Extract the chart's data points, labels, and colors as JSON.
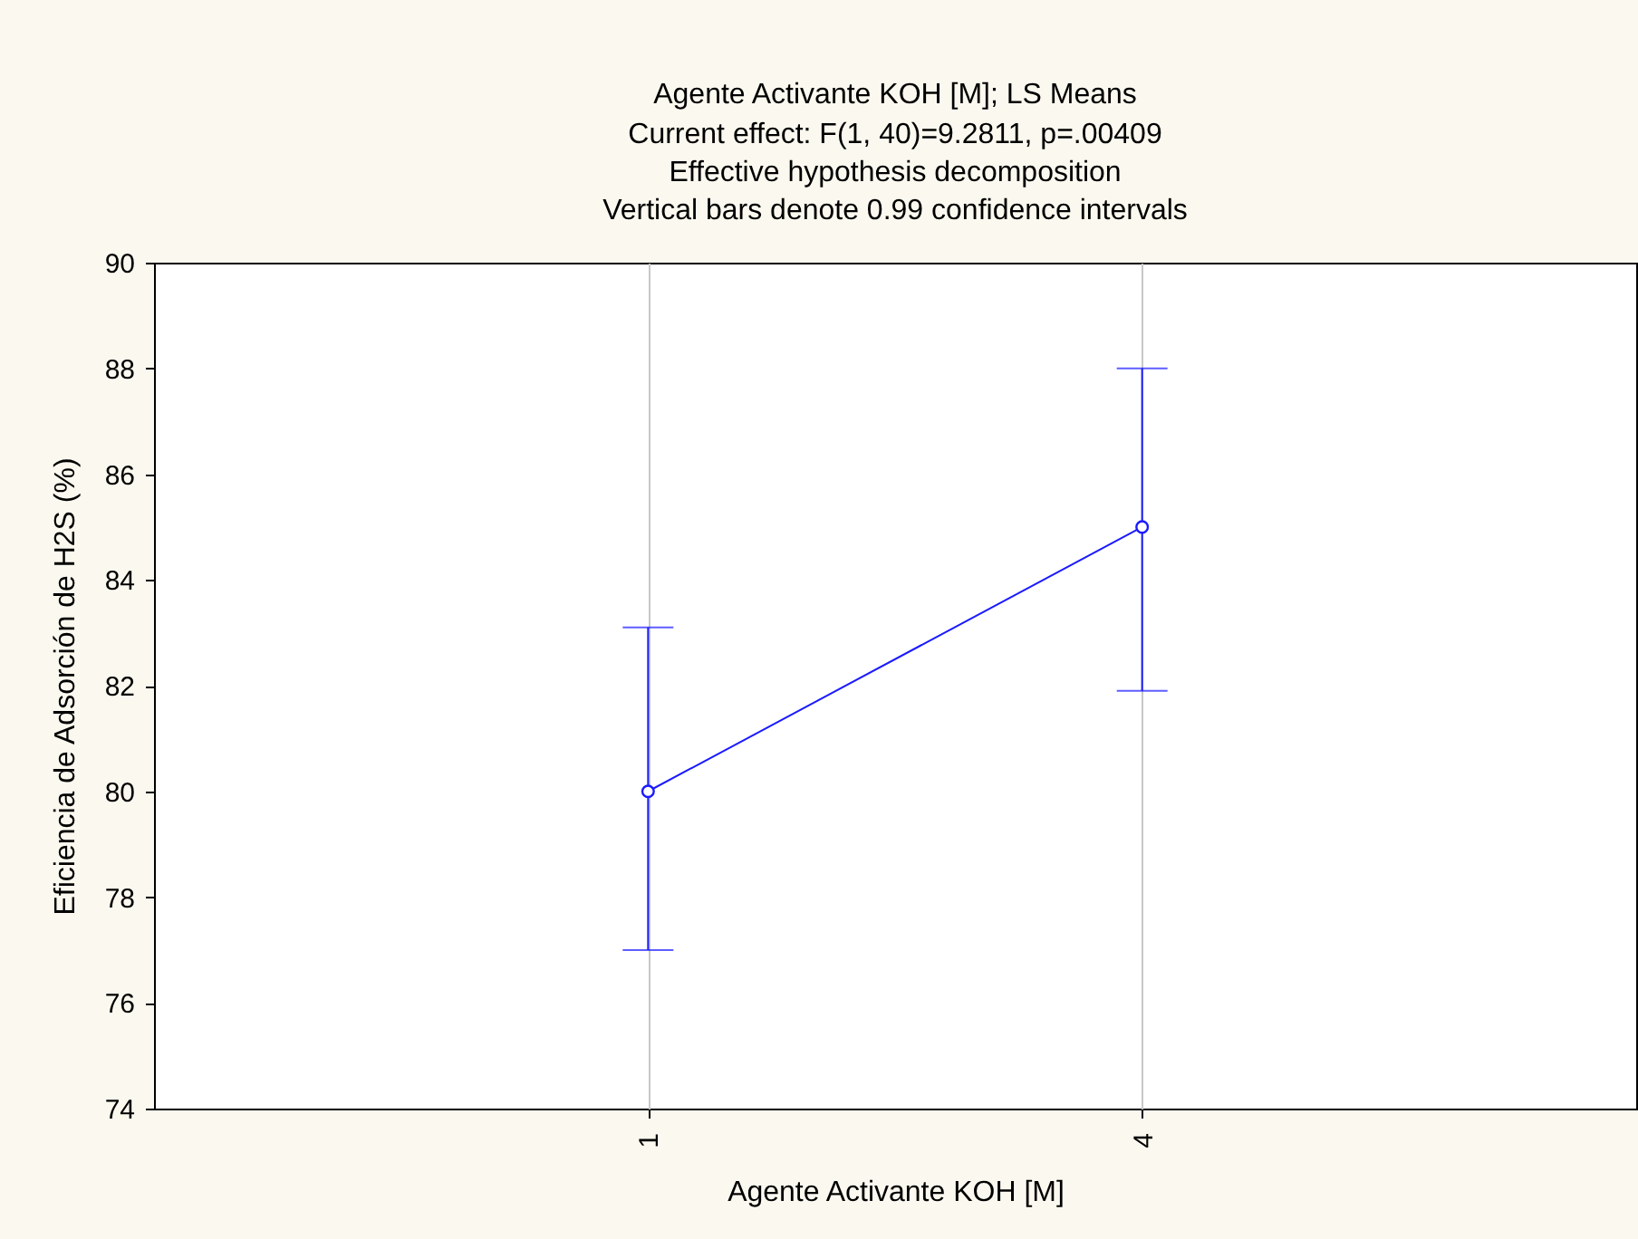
{
  "chart_data": {
    "type": "line",
    "title": "Agente Activante KOH [M]; LS Means",
    "subtitle": "Current effect: F(1, 40)=9.2811, p=.00409",
    "annotations": [
      "Effective hypothesis decomposition",
      "Vertical bars denote 0.99 confidence intervals"
    ],
    "xlabel": "Agente Activante KOH [M]",
    "ylabel": "Eficiencia de Adsorción de H2S (%)",
    "categories": [
      "1",
      "4"
    ],
    "series": [
      {
        "color": "#1a1aff",
        "values": [
          80.0,
          85.0
        ],
        "errors": [
          [
            77.0,
            83.1
          ],
          [
            81.9,
            88.0
          ]
        ]
      }
    ],
    "ylim": [
      74,
      90
    ],
    "yticks": [
      74,
      76,
      78,
      80,
      82,
      84,
      86,
      88,
      90
    ],
    "grid": "x",
    "marker": "circle",
    "line_style": "solid"
  }
}
